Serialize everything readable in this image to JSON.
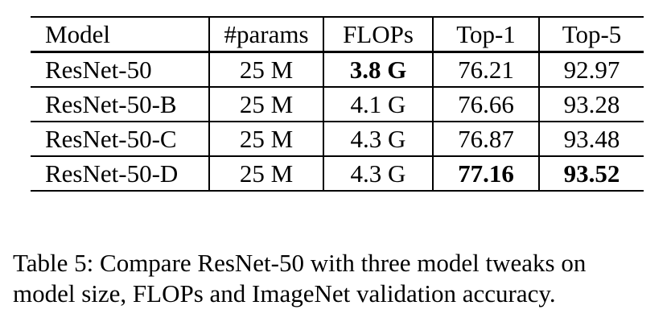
{
  "table": {
    "headers": [
      "Model",
      "#params",
      "FLOPs",
      "Top-1",
      "Top-5"
    ],
    "rows": [
      {
        "cells": [
          "ResNet-50",
          "25 M",
          "3.8 G",
          "76.21",
          "92.97"
        ],
        "bold": [
          false,
          false,
          true,
          false,
          false
        ]
      },
      {
        "cells": [
          "ResNet-50-B",
          "25 M",
          "4.1 G",
          "76.66",
          "93.28"
        ],
        "bold": [
          false,
          false,
          false,
          false,
          false
        ]
      },
      {
        "cells": [
          "ResNet-50-C",
          "25 M",
          "4.3 G",
          "76.87",
          "93.48"
        ],
        "bold": [
          false,
          false,
          false,
          false,
          false
        ]
      },
      {
        "cells": [
          "ResNet-50-D",
          "25 M",
          "4.3 G",
          "77.16",
          "93.52"
        ],
        "bold": [
          false,
          false,
          false,
          true,
          true
        ]
      }
    ]
  },
  "caption": {
    "line1": "Table 5: Compare ResNet-50 with three model tweaks on",
    "line2": "model size, FLOPs and ImageNet validation accuracy."
  }
}
